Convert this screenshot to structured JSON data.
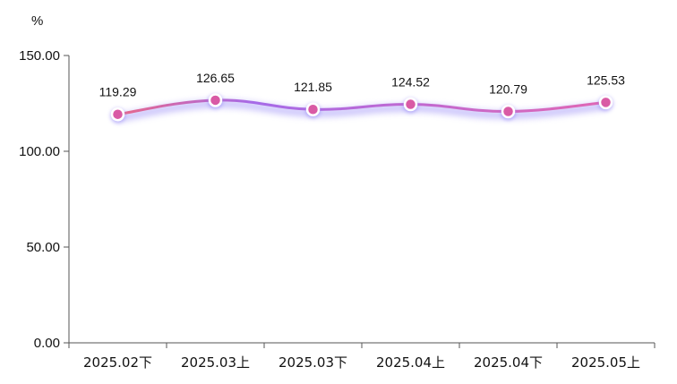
{
  "chart_data": {
    "type": "line",
    "title": "",
    "xlabel": "",
    "ylabel": "%",
    "categories": [
      "2025.02下",
      "2025.03上",
      "2025.03下",
      "2025.04上",
      "2025.04下",
      "2025.05上"
    ],
    "series": [
      {
        "values": [
          119.29,
          126.65,
          121.85,
          124.52,
          120.79,
          125.53
        ],
        "labels": [
          "119.29",
          "126.65",
          "121.85",
          "124.52",
          "120.79",
          "125.53"
        ]
      }
    ],
    "yticks": [
      "0.00",
      "50.00",
      "100.00",
      "150.00"
    ],
    "ylim": [
      0,
      150
    ],
    "grid": false,
    "legend": "none",
    "line_smooth": true,
    "colors": {
      "line_start": "#e8678a",
      "line_mid": "#a66ae8",
      "line_end": "#e067b4",
      "glow": "#8a7cf5",
      "marker_fill": "#d95aa5",
      "marker_stroke": "#ffffff",
      "axis": "#555555"
    }
  }
}
